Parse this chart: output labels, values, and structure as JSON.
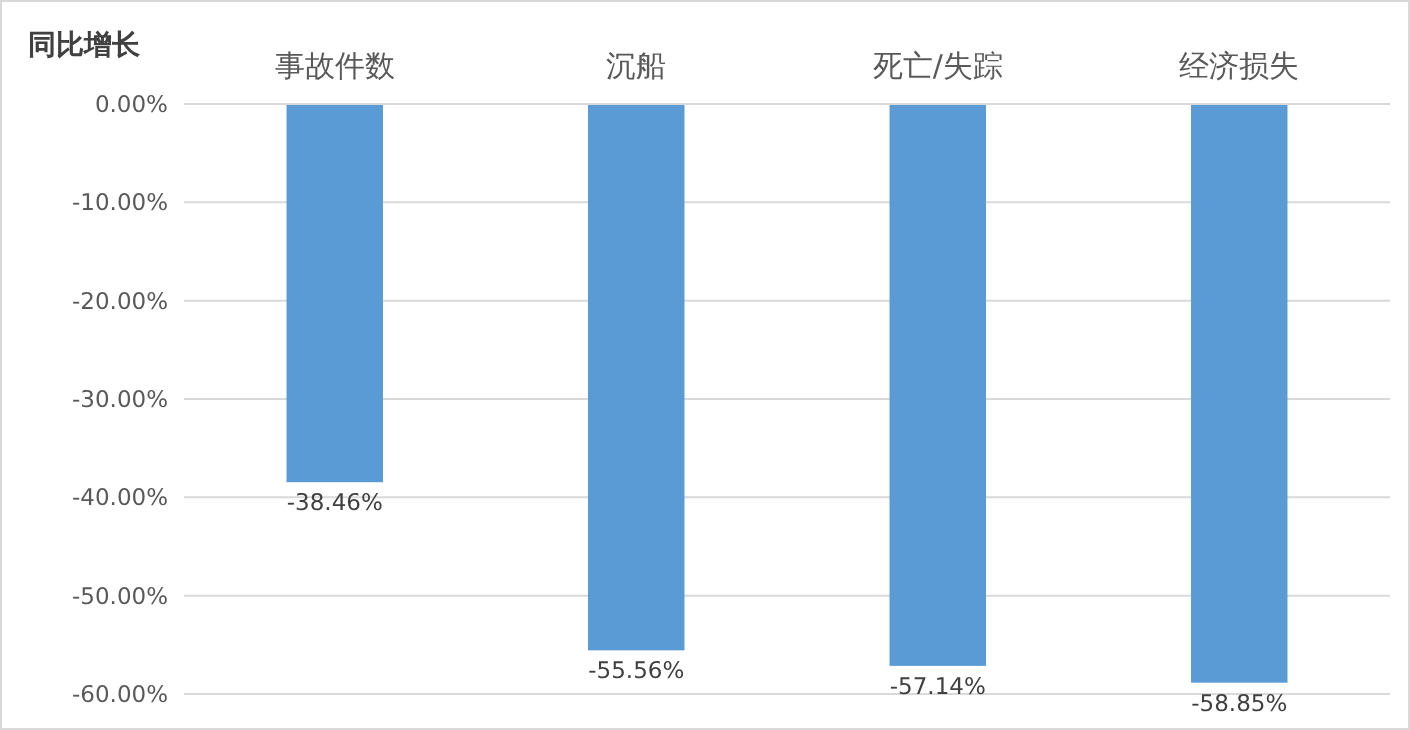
{
  "chart_data": {
    "type": "bar",
    "ylabel": "同比增长",
    "categories": [
      "事故件数",
      "沉船",
      "死亡/失踪",
      "经济损失"
    ],
    "values": [
      -38.46,
      -55.56,
      -57.14,
      -58.85
    ],
    "value_labels": [
      "-38.46%",
      "-55.56%",
      "-57.14%",
      "-58.85%"
    ],
    "color": "#5b9bd5",
    "ylim": [
      -60,
      0
    ],
    "yticks": [
      {
        "value": 0,
        "label": "0.00%"
      },
      {
        "value": -10,
        "label": "-10.00%"
      },
      {
        "value": -20,
        "label": "-20.00%"
      },
      {
        "value": -30,
        "label": "-30.00%"
      },
      {
        "value": -40,
        "label": "-40.00%"
      },
      {
        "value": -50,
        "label": "-50.00%"
      },
      {
        "value": -60,
        "label": "-60.00%"
      }
    ],
    "grid": "y"
  }
}
